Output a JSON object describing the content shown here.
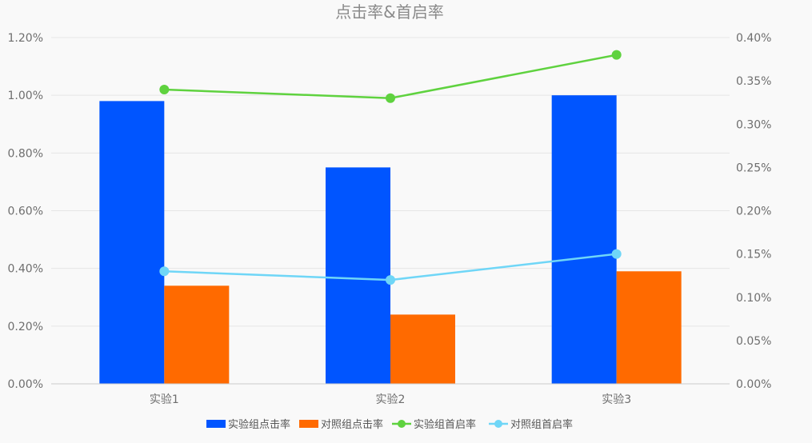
{
  "chart_data": {
    "type": "bar",
    "title": "点击率&首启率",
    "categories": [
      "实验1",
      "实验2",
      "实验3"
    ],
    "y_left": {
      "ticks": [
        "0.00%",
        "0.20%",
        "0.40%",
        "0.60%",
        "0.80%",
        "1.00%",
        "1.20%"
      ],
      "range": [
        0,
        1.2
      ]
    },
    "y_right": {
      "ticks": [
        "0.00%",
        "0.05%",
        "0.10%",
        "0.15%",
        "0.20%",
        "0.25%",
        "0.30%",
        "0.35%",
        "0.40%"
      ],
      "range": [
        0,
        0.4
      ]
    },
    "grid": true,
    "legend_position": "bottom",
    "series": [
      {
        "name": "实验组点击率",
        "type": "bar",
        "axis": "left",
        "color": "#0055ff",
        "values": [
          0.98,
          0.75,
          1.0
        ]
      },
      {
        "name": "对照组点击率",
        "type": "bar",
        "axis": "left",
        "color": "#ff6a00",
        "values": [
          0.34,
          0.24,
          0.39
        ]
      },
      {
        "name": "实验组首启率",
        "type": "line",
        "axis": "right",
        "color": "#5fd23f",
        "values": [
          0.34,
          0.33,
          0.38
        ]
      },
      {
        "name": "对照组首启率",
        "type": "line",
        "axis": "right",
        "color": "#6fd6f7",
        "values": [
          0.13,
          0.12,
          0.15
        ]
      }
    ]
  }
}
